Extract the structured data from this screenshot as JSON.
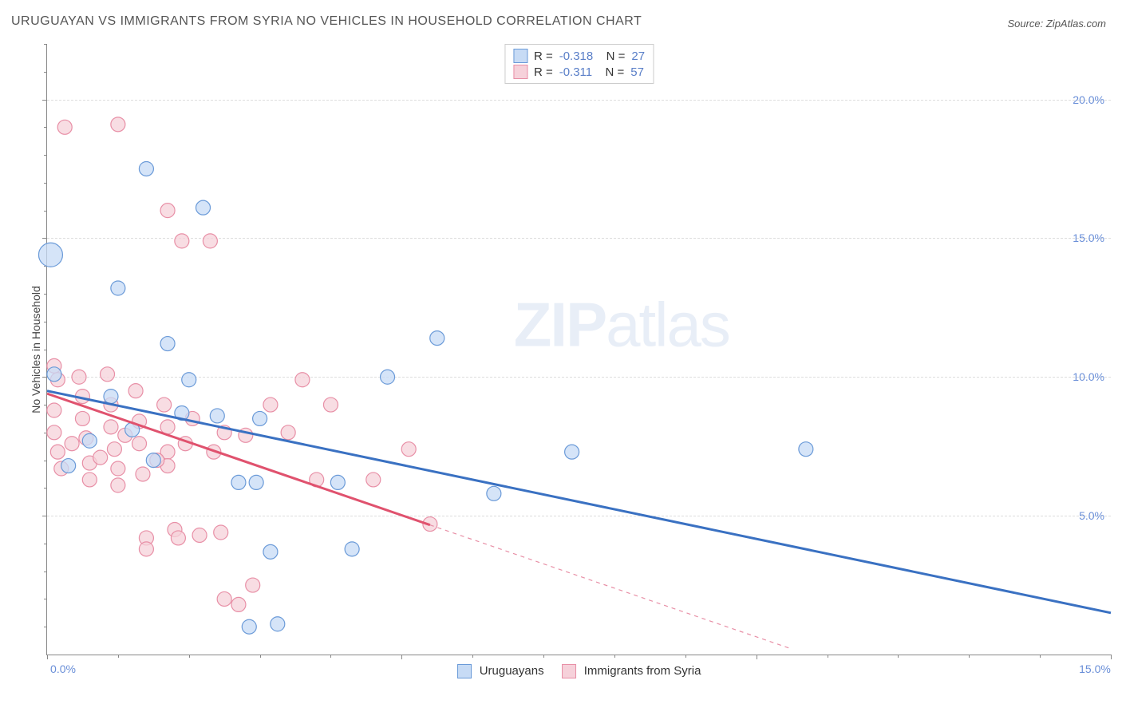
{
  "title": "URUGUAYAN VS IMMIGRANTS FROM SYRIA NO VEHICLES IN HOUSEHOLD CORRELATION CHART",
  "source": "Source: ZipAtlas.com",
  "watermark": {
    "bold": "ZIP",
    "light": "atlas"
  },
  "ylabel": "No Vehicles in Household",
  "chart": {
    "type": "scatter-correlation",
    "background_color": "#ffffff",
    "grid_color": "#dddddd",
    "axis_color": "#888888",
    "tick_label_color": "#6a8fd8",
    "xlim": [
      0,
      15
    ],
    "ylim": [
      0,
      22
    ],
    "x_ticks": [
      0,
      5,
      10,
      15
    ],
    "x_tick_labels": [
      "0.0%",
      "",
      "",
      "15.0%"
    ],
    "y_gridlines": [
      5,
      10,
      15,
      20
    ],
    "y_tick_labels": [
      "5.0%",
      "10.0%",
      "15.0%",
      "20.0%"
    ],
    "marker_radius": 9,
    "marker_stroke_width": 1.2,
    "trend_line_width": 3,
    "series": [
      {
        "name": "Uruguayans",
        "fill": "#c7dbf5",
        "stroke": "#6a9ad8",
        "line_color": "#3a71c2",
        "r_value": "-0.318",
        "n_value": "27",
        "trend": {
          "x1": 0,
          "y1": 9.5,
          "x2": 15,
          "y2": 1.5,
          "dashed_from": null
        },
        "points": [
          {
            "x": 0.05,
            "y": 14.4,
            "r": 15
          },
          {
            "x": 0.1,
            "y": 10.1
          },
          {
            "x": 1.0,
            "y": 13.2
          },
          {
            "x": 1.4,
            "y": 17.5
          },
          {
            "x": 2.2,
            "y": 16.1
          },
          {
            "x": 0.6,
            "y": 7.7
          },
          {
            "x": 1.2,
            "y": 8.1
          },
          {
            "x": 1.7,
            "y": 11.2
          },
          {
            "x": 2.0,
            "y": 9.9
          },
          {
            "x": 2.4,
            "y": 8.6
          },
          {
            "x": 2.7,
            "y": 6.2
          },
          {
            "x": 2.95,
            "y": 6.2
          },
          {
            "x": 3.0,
            "y": 8.5
          },
          {
            "x": 3.15,
            "y": 3.7
          },
          {
            "x": 2.85,
            "y": 1.0
          },
          {
            "x": 3.25,
            "y": 1.1
          },
          {
            "x": 4.1,
            "y": 6.2
          },
          {
            "x": 4.3,
            "y": 3.8
          },
          {
            "x": 4.8,
            "y": 10.0
          },
          {
            "x": 5.5,
            "y": 11.4
          },
          {
            "x": 6.3,
            "y": 5.8
          },
          {
            "x": 7.4,
            "y": 7.3
          },
          {
            "x": 10.7,
            "y": 7.4
          },
          {
            "x": 0.9,
            "y": 9.3
          },
          {
            "x": 0.3,
            "y": 6.8
          },
          {
            "x": 1.5,
            "y": 7.0
          },
          {
            "x": 1.9,
            "y": 8.7
          }
        ]
      },
      {
        "name": "Immigrants from Syria",
        "fill": "#f6d1da",
        "stroke": "#e88fa6",
        "line_color": "#e0526e",
        "r_value": "-0.311",
        "n_value": "57",
        "trend": {
          "x1": 0,
          "y1": 9.4,
          "x2": 10.5,
          "y2": 0.2,
          "dashed_from": 5.4
        },
        "points": [
          {
            "x": 0.25,
            "y": 19.0
          },
          {
            "x": 1.0,
            "y": 19.1
          },
          {
            "x": 1.7,
            "y": 16.0
          },
          {
            "x": 1.9,
            "y": 14.9
          },
          {
            "x": 2.3,
            "y": 14.9
          },
          {
            "x": 0.1,
            "y": 10.4
          },
          {
            "x": 0.15,
            "y": 9.9
          },
          {
            "x": 0.1,
            "y": 8.8
          },
          {
            "x": 0.1,
            "y": 8.0
          },
          {
            "x": 0.15,
            "y": 7.3
          },
          {
            "x": 0.2,
            "y": 6.7
          },
          {
            "x": 0.45,
            "y": 10.0
          },
          {
            "x": 0.5,
            "y": 9.3
          },
          {
            "x": 0.5,
            "y": 8.5
          },
          {
            "x": 0.55,
            "y": 7.8
          },
          {
            "x": 0.6,
            "y": 6.9
          },
          {
            "x": 0.6,
            "y": 6.3
          },
          {
            "x": 0.85,
            "y": 10.1
          },
          {
            "x": 0.9,
            "y": 9.0
          },
          {
            "x": 0.9,
            "y": 8.2
          },
          {
            "x": 0.95,
            "y": 7.4
          },
          {
            "x": 1.0,
            "y": 6.7
          },
          {
            "x": 1.0,
            "y": 6.1
          },
          {
            "x": 1.25,
            "y": 9.5
          },
          {
            "x": 1.3,
            "y": 8.4
          },
          {
            "x": 1.3,
            "y": 7.6
          },
          {
            "x": 1.35,
            "y": 6.5
          },
          {
            "x": 1.4,
            "y": 4.2
          },
          {
            "x": 1.4,
            "y": 3.8
          },
          {
            "x": 1.65,
            "y": 9.0
          },
          {
            "x": 1.7,
            "y": 8.2
          },
          {
            "x": 1.7,
            "y": 7.3
          },
          {
            "x": 1.7,
            "y": 6.8
          },
          {
            "x": 1.8,
            "y": 4.5
          },
          {
            "x": 1.85,
            "y": 4.2
          },
          {
            "x": 2.05,
            "y": 8.5
          },
          {
            "x": 2.15,
            "y": 4.3
          },
          {
            "x": 2.45,
            "y": 4.4
          },
          {
            "x": 2.5,
            "y": 8.0
          },
          {
            "x": 2.5,
            "y": 2.0
          },
          {
            "x": 2.7,
            "y": 1.8
          },
          {
            "x": 2.8,
            "y": 7.9
          },
          {
            "x": 2.9,
            "y": 2.5
          },
          {
            "x": 3.15,
            "y": 9.0
          },
          {
            "x": 3.4,
            "y": 8.0
          },
          {
            "x": 3.6,
            "y": 9.9
          },
          {
            "x": 3.8,
            "y": 6.3
          },
          {
            "x": 4.0,
            "y": 9.0
          },
          {
            "x": 4.6,
            "y": 6.3
          },
          {
            "x": 5.1,
            "y": 7.4
          },
          {
            "x": 5.4,
            "y": 4.7
          },
          {
            "x": 0.35,
            "y": 7.6
          },
          {
            "x": 0.75,
            "y": 7.1
          },
          {
            "x": 1.1,
            "y": 7.9
          },
          {
            "x": 1.55,
            "y": 7.0
          },
          {
            "x": 1.95,
            "y": 7.6
          },
          {
            "x": 2.35,
            "y": 7.3
          }
        ]
      }
    ]
  },
  "legend": {
    "series_a_label": "Uruguayans",
    "series_b_label": "Immigrants from Syria"
  }
}
